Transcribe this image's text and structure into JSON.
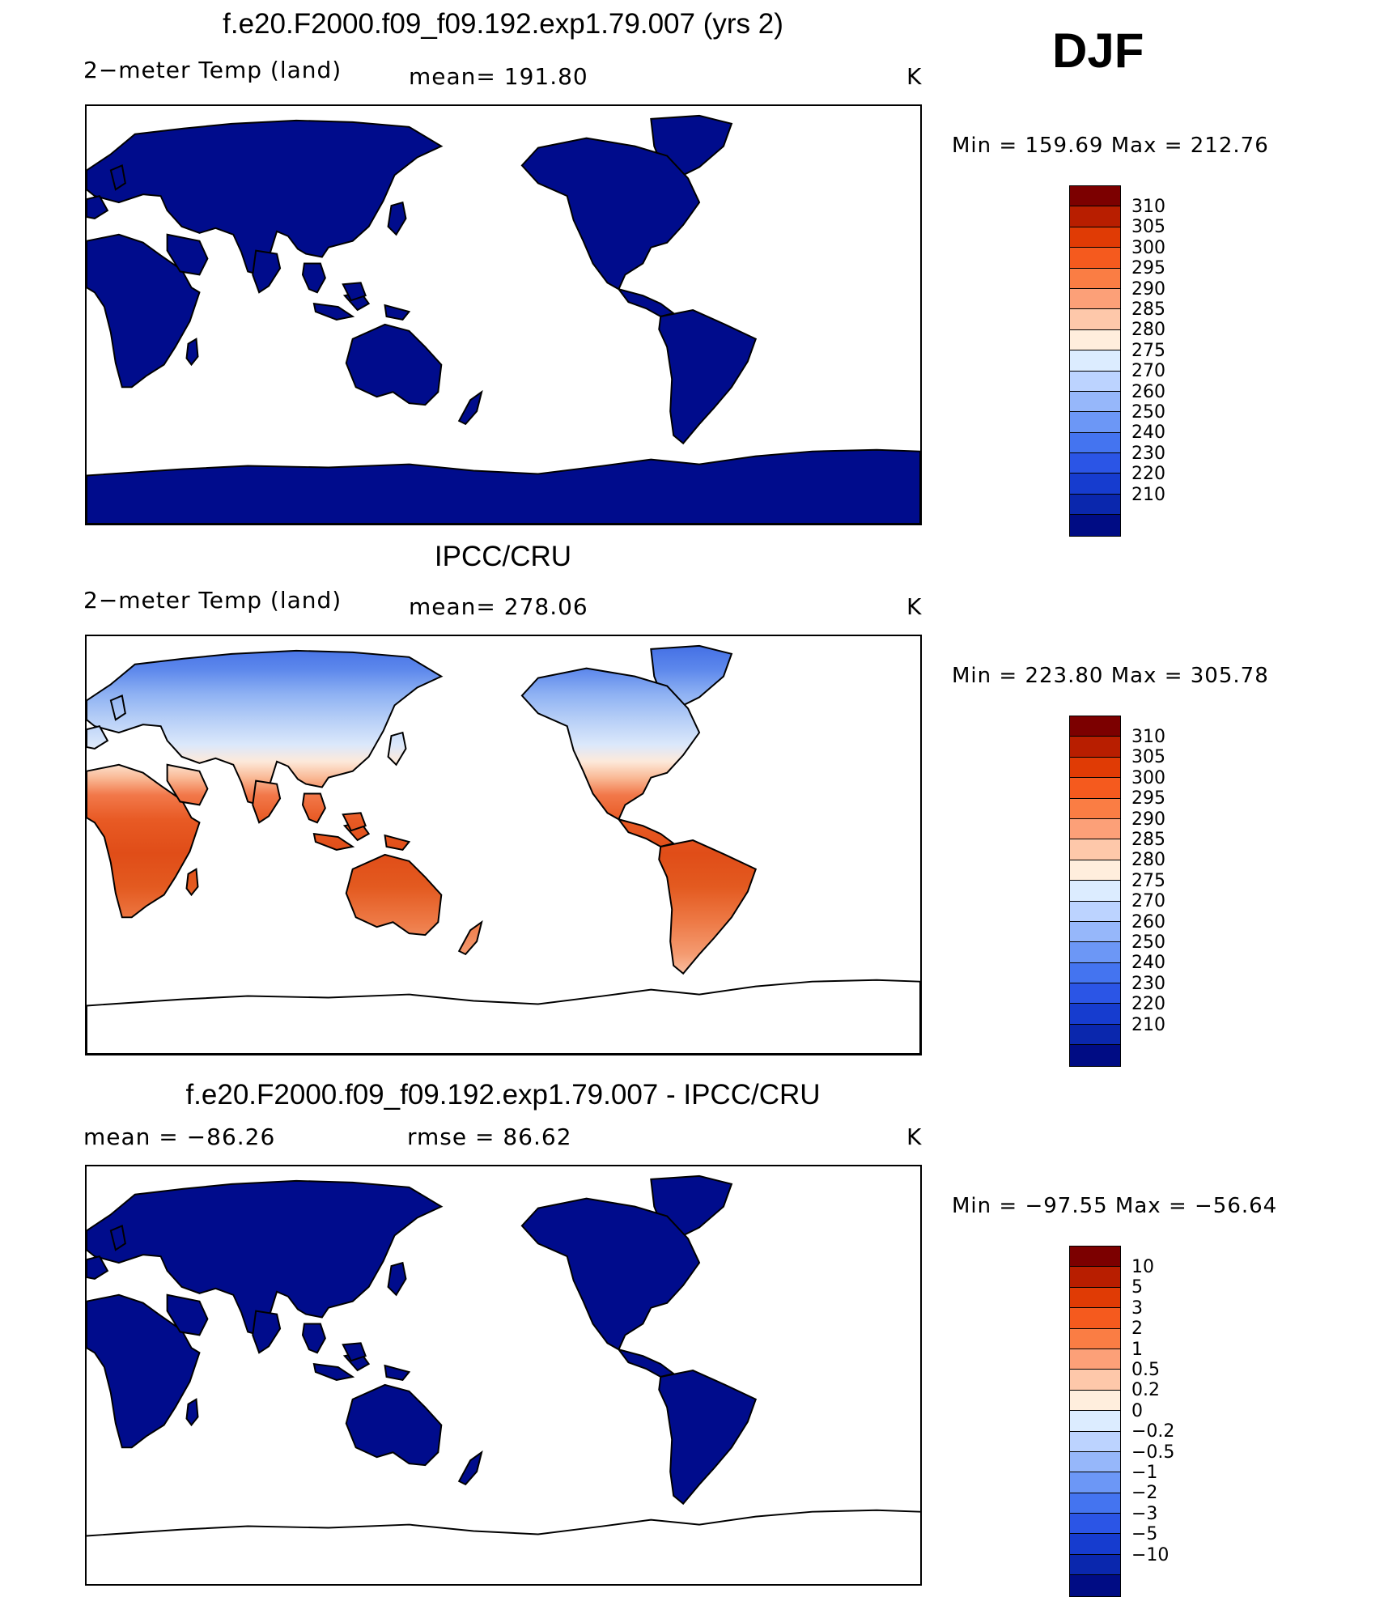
{
  "season": "DJF",
  "colors": {
    "land_dark_blue": "#000c8c",
    "ocean": "#ffffff",
    "coast": "#000000"
  },
  "panels": [
    {
      "id": "model",
      "title": "f.e20.F2000.f09_f09.192.exp1.79.007 (yrs 2)",
      "left_label": "2−meter Temp (land)",
      "mid_label": "mean=  191.80",
      "unit": "K",
      "minmax": "Min  =  159.69  Max  =  212.76",
      "fill": "dark_blue",
      "colorbar_colors": [
        "#7c0000",
        "#b81e00",
        "#e03b05",
        "#f55a1e",
        "#fa7d44",
        "#fca078",
        "#fec8aa",
        "#ffeedd",
        "#dcecff",
        "#bcd3ff",
        "#96b7fa",
        "#6c97f6",
        "#4474f0",
        "#2b55e6",
        "#163ccf",
        "#0a27ad",
        "#000c84"
      ],
      "colorbar_labels": [
        "310",
        "305",
        "300",
        "295",
        "290",
        "285",
        "280",
        "275",
        "270",
        "260",
        "250",
        "240",
        "230",
        "220",
        "210"
      ]
    },
    {
      "id": "obs",
      "title": "IPCC/CRU",
      "left_label": "2−meter Temp (land)",
      "mid_label": "mean=  278.06",
      "unit": "K",
      "minmax": "Min  =  223.80  Max  =  305.78",
      "fill": "temperature",
      "colorbar_colors": [
        "#7c0000",
        "#b81e00",
        "#e03b05",
        "#f55a1e",
        "#fa7d44",
        "#fca078",
        "#fec8aa",
        "#ffeedd",
        "#dcecff",
        "#bcd3ff",
        "#96b7fa",
        "#6c97f6",
        "#4474f0",
        "#2b55e6",
        "#163ccf",
        "#0a27ad",
        "#000c84"
      ],
      "colorbar_labels": [
        "310",
        "305",
        "300",
        "295",
        "290",
        "285",
        "280",
        "275",
        "270",
        "260",
        "250",
        "240",
        "230",
        "220",
        "210"
      ]
    },
    {
      "id": "diff",
      "title": "f.e20.F2000.f09_f09.192.exp1.79.007 - IPCC/CRU",
      "left_label": "mean  =  −86.26",
      "mid_label": "rmse  =     86.62",
      "unit": "K",
      "minmax": "Min  =  −97.55  Max  =  −56.64",
      "fill": "dark_blue",
      "colorbar_colors": [
        "#7c0000",
        "#b81e00",
        "#e03b05",
        "#f55a1e",
        "#fa7d44",
        "#fca078",
        "#fec8aa",
        "#ffeedd",
        "#dcecff",
        "#bcd3ff",
        "#96b7fa",
        "#6c97f6",
        "#4474f0",
        "#2b55e6",
        "#163ccf",
        "#0a27ad",
        "#000c84"
      ],
      "colorbar_labels": [
        "10",
        "5",
        "3",
        "2",
        "1",
        "0.5",
        "0.2",
        "0",
        "−0.2",
        "−0.5",
        "−1",
        "−2",
        "−3",
        "−5",
        "−10"
      ]
    }
  ]
}
